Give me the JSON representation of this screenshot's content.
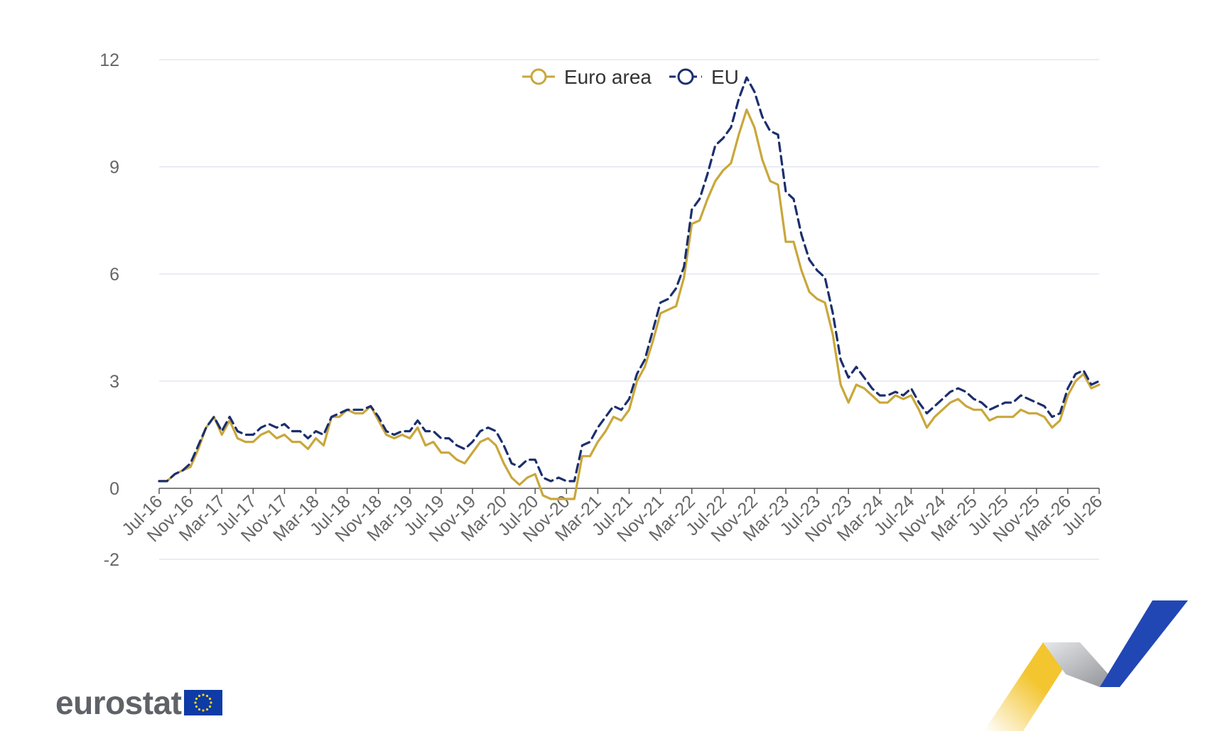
{
  "colors": {
    "euro_area": "#c9a73a",
    "eu": "#1b2f6e",
    "grid": "#e3e6f2",
    "axis": "#555555",
    "tick_text": "#666666",
    "flag_blue": "#0e3ba6",
    "flag_star": "#ffd617",
    "ribbon_yellow": "#f3c52f",
    "ribbon_grey": "#b9bbbe",
    "ribbon_blue": "#2147b5"
  },
  "branding": {
    "logo_text": "eurostat",
    "logo_icon": "eu-flag-icon"
  },
  "chart_data": {
    "type": "line",
    "title": "",
    "xlabel": "",
    "ylabel": "",
    "ylim": [
      -2,
      12
    ],
    "yticks": [
      -2,
      0,
      3,
      6,
      9,
      12
    ],
    "grid": true,
    "legend_position": "top-center",
    "x": [
      "Jul-16",
      "Aug-16",
      "Sep-16",
      "Oct-16",
      "Nov-16",
      "Dec-16",
      "Jan-17",
      "Feb-17",
      "Mar-17",
      "Apr-17",
      "May-17",
      "Jun-17",
      "Jul-17",
      "Aug-17",
      "Sep-17",
      "Oct-17",
      "Nov-17",
      "Dec-17",
      "Jan-18",
      "Feb-18",
      "Mar-18",
      "Apr-18",
      "May-18",
      "Jun-18",
      "Jul-18",
      "Aug-18",
      "Sep-18",
      "Oct-18",
      "Nov-18",
      "Dec-18",
      "Jan-19",
      "Feb-19",
      "Mar-19",
      "Apr-19",
      "May-19",
      "Jun-19",
      "Jul-19",
      "Aug-19",
      "Sep-19",
      "Oct-19",
      "Nov-19",
      "Dec-19",
      "Jan-20",
      "Feb-20",
      "Mar-20",
      "Apr-20",
      "May-20",
      "Jun-20",
      "Jul-20",
      "Aug-20",
      "Sep-20",
      "Oct-20",
      "Nov-20",
      "Dec-20",
      "Jan-21",
      "Feb-21",
      "Mar-21",
      "Apr-21",
      "May-21",
      "Jun-21",
      "Jul-21",
      "Aug-21",
      "Sep-21",
      "Oct-21",
      "Nov-21",
      "Dec-21",
      "Jan-22",
      "Feb-22",
      "Mar-22",
      "Apr-22",
      "May-22",
      "Jun-22",
      "Jul-22",
      "Aug-22",
      "Sep-22",
      "Oct-22",
      "Nov-22",
      "Dec-22",
      "Jan-23",
      "Feb-23",
      "Mar-23",
      "Apr-23",
      "May-23",
      "Jun-23",
      "Jul-23",
      "Aug-23",
      "Sep-23",
      "Oct-23",
      "Nov-23",
      "Dec-23",
      "Jan-24",
      "Feb-24",
      "Mar-24",
      "Apr-24",
      "May-24",
      "Jun-24",
      "Jul-24",
      "Aug-24",
      "Sep-24",
      "Oct-24",
      "Nov-24",
      "Dec-24",
      "Jan-25",
      "Feb-25",
      "Mar-25",
      "Apr-25",
      "May-25",
      "Jun-25",
      "Jul-25",
      "Aug-25",
      "Sep-25",
      "Oct-25",
      "Nov-25",
      "Dec-25",
      "Jan-26",
      "Feb-26",
      "Mar-26",
      "Apr-26",
      "May-26",
      "Jun-26",
      "Jul-26"
    ],
    "xtick_labels": [
      "Jul-16",
      "Nov-16",
      "Mar-17",
      "Jul-17",
      "Nov-17",
      "Mar-18",
      "Jul-18",
      "Nov-18",
      "Mar-19",
      "Jul-19",
      "Nov-19",
      "Mar-20",
      "Jul-20",
      "Nov-20",
      "Mar-21",
      "Jul-21",
      "Nov-21",
      "Mar-22",
      "Jul-22",
      "Nov-22",
      "Mar-23",
      "Jul-23",
      "Nov-23",
      "Mar-24",
      "Jul-24",
      "Nov-24",
      "Mar-25",
      "Jul-25",
      "Nov-25",
      "Mar-26",
      "Jul-26"
    ],
    "series": [
      {
        "name": "Euro area",
        "values": [
          0.2,
          0.2,
          0.4,
          0.5,
          0.6,
          1.1,
          1.7,
          2.0,
          1.5,
          1.9,
          1.4,
          1.3,
          1.3,
          1.5,
          1.6,
          1.4,
          1.5,
          1.3,
          1.3,
          1.1,
          1.4,
          1.2,
          2.0,
          2.0,
          2.2,
          2.1,
          2.1,
          2.3,
          1.9,
          1.5,
          1.4,
          1.5,
          1.4,
          1.7,
          1.2,
          1.3,
          1.0,
          1.0,
          0.8,
          0.7,
          1.0,
          1.3,
          1.4,
          1.2,
          0.7,
          0.3,
          0.1,
          0.3,
          0.4,
          -0.2,
          -0.3,
          -0.3,
          -0.3,
          -0.3,
          0.9,
          0.9,
          1.3,
          1.6,
          2.0,
          1.9,
          2.2,
          3.0,
          3.4,
          4.1,
          4.9,
          5.0,
          5.1,
          5.9,
          7.4,
          7.5,
          8.1,
          8.6,
          8.9,
          9.1,
          9.9,
          10.6,
          10.1,
          9.2,
          8.6,
          8.5,
          6.9,
          6.9,
          6.1,
          5.5,
          5.3,
          5.2,
          4.3,
          2.9,
          2.4,
          2.9,
          2.8,
          2.6,
          2.4,
          2.4,
          2.6,
          2.5,
          2.6,
          2.2,
          1.7,
          2.0,
          2.2,
          2.4,
          2.5,
          2.3,
          2.2,
          2.2,
          1.9,
          2.0,
          2.0,
          2.0,
          2.2,
          2.1,
          2.1,
          2.0,
          1.7,
          1.9,
          2.6,
          3.0,
          3.2,
          2.8,
          2.9
        ]
      },
      {
        "name": "EU",
        "values": [
          0.2,
          0.2,
          0.4,
          0.5,
          0.7,
          1.2,
          1.7,
          2.0,
          1.6,
          2.0,
          1.6,
          1.5,
          1.5,
          1.7,
          1.8,
          1.7,
          1.8,
          1.6,
          1.6,
          1.4,
          1.6,
          1.5,
          2.0,
          2.1,
          2.2,
          2.2,
          2.2,
          2.3,
          2.0,
          1.6,
          1.5,
          1.6,
          1.6,
          1.9,
          1.6,
          1.6,
          1.4,
          1.4,
          1.2,
          1.1,
          1.3,
          1.6,
          1.7,
          1.6,
          1.2,
          0.7,
          0.6,
          0.8,
          0.8,
          0.3,
          0.2,
          0.3,
          0.2,
          0.2,
          1.2,
          1.3,
          1.7,
          2.0,
          2.3,
          2.2,
          2.5,
          3.2,
          3.6,
          4.4,
          5.2,
          5.3,
          5.6,
          6.2,
          7.8,
          8.1,
          8.8,
          9.6,
          9.8,
          10.1,
          10.9,
          11.5,
          11.1,
          10.4,
          10.0,
          9.9,
          8.3,
          8.1,
          7.1,
          6.4,
          6.1,
          5.9,
          4.9,
          3.6,
          3.1,
          3.4,
          3.1,
          2.8,
          2.6,
          2.6,
          2.7,
          2.6,
          2.8,
          2.4,
          2.1,
          2.3,
          2.5,
          2.7,
          2.8,
          2.7,
          2.5,
          2.4,
          2.2,
          2.3,
          2.4,
          2.4,
          2.6,
          2.5,
          2.4,
          2.3,
          2.0,
          2.1,
          2.8,
          3.2,
          3.3,
          2.9,
          3.0
        ]
      }
    ]
  }
}
